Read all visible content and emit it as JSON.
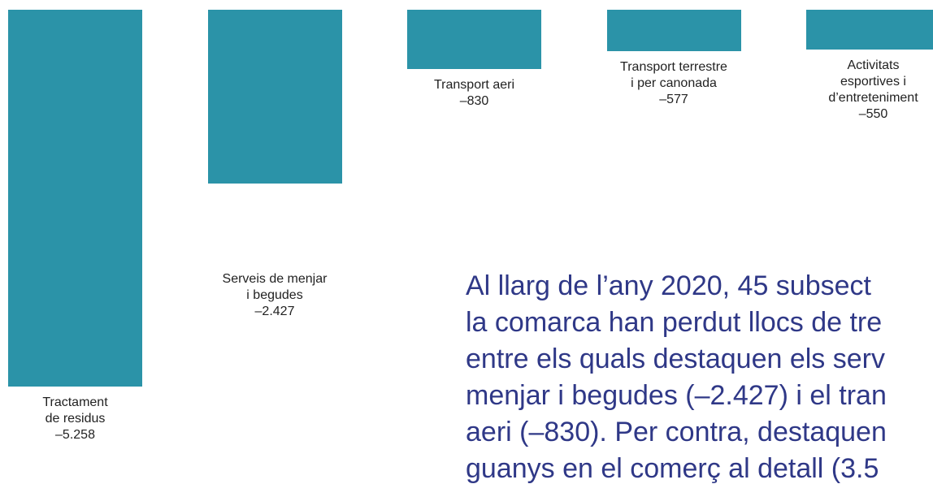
{
  "chart_data": {
    "type": "bar",
    "categories": [
      "Tractament\nde residus",
      "Serveis de menjar\ni begudes",
      "Transport aeri",
      "Transport terrestre\ni per canonada",
      "Activitats\nesportives i\nd’entreteniment"
    ],
    "values": [
      -5258,
      -2427,
      -830,
      -577,
      -550
    ],
    "value_labels": [
      "–5.258",
      "–2.427",
      "–830",
      "–577",
      "–550"
    ],
    "color": "#2b93a8"
  },
  "paragraph": {
    "lines": [
      "Al llarg de l’any 2020, 45 subsect",
      "la comarca han perdut llocs de tre",
      "entre els quals destaquen els serv",
      "menjar i begudes (–2.427) i el tran",
      "aeri (–830). Per contra, destaquen",
      "guanys en el comerç al detall (3.5"
    ]
  }
}
